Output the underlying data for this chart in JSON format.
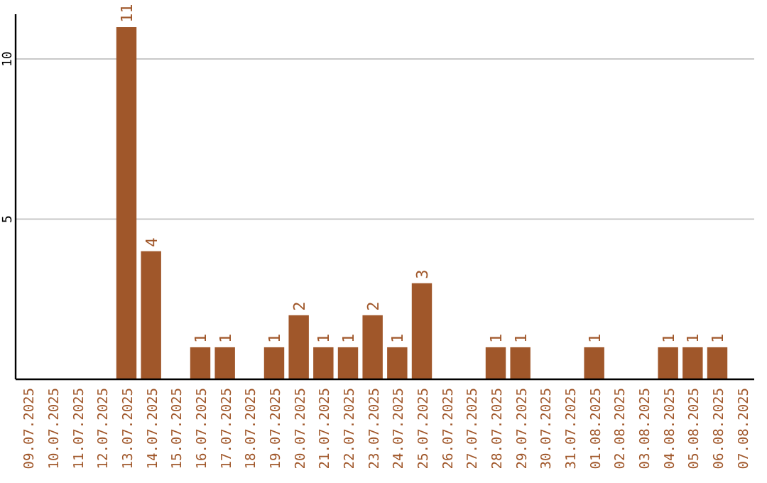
{
  "chart_data": {
    "type": "bar",
    "categories": [
      "09.07.2025",
      "10.07.2025",
      "11.07.2025",
      "12.07.2025",
      "13.07.2025",
      "14.07.2025",
      "15.07.2025",
      "16.07.2025",
      "17.07.2025",
      "18.07.2025",
      "19.07.2025",
      "20.07.2025",
      "21.07.2025",
      "22.07.2025",
      "23.07.2025",
      "24.07.2025",
      "25.07.2025",
      "26.07.2025",
      "27.07.2025",
      "28.07.2025",
      "29.07.2025",
      "30.07.2025",
      "31.07.2025",
      "01.08.2025",
      "02.08.2025",
      "03.08.2025",
      "04.08.2025",
      "05.08.2025",
      "06.08.2025",
      "07.08.2025"
    ],
    "values": [
      0,
      0,
      0,
      0,
      11,
      4,
      0,
      1,
      1,
      0,
      1,
      2,
      1,
      1,
      2,
      1,
      3,
      0,
      0,
      1,
      1,
      0,
      0,
      1,
      0,
      0,
      1,
      1,
      1,
      0
    ],
    "value_labels": [
      null,
      null,
      null,
      null,
      "11",
      "4",
      null,
      "1",
      "1",
      null,
      "1",
      "2",
      "1",
      "1",
      "2",
      "1",
      "3",
      null,
      null,
      "1",
      "1",
      null,
      null,
      "1",
      null,
      null,
      "1",
      "1",
      "1",
      null
    ],
    "color": "#a0572a",
    "ylim": [
      0,
      11.4
    ],
    "yticks": [
      5,
      10
    ],
    "grid": "y"
  }
}
